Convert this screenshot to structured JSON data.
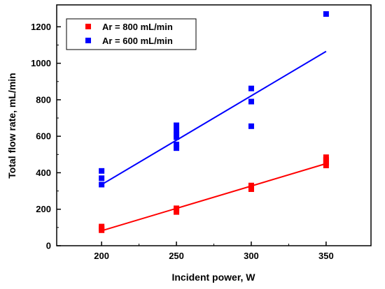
{
  "chart_data": {
    "type": "scatter",
    "xlabel": "Incident power, W",
    "ylabel": "Total flow rate, mL/min",
    "xlim": [
      170,
      380
    ],
    "ylim": [
      0,
      1320
    ],
    "xticks": [
      200,
      250,
      300,
      350
    ],
    "yticks": [
      0,
      200,
      400,
      600,
      800,
      1000,
      1200
    ],
    "grid": false,
    "legend_position": "top-left",
    "series": [
      {
        "name": "Ar = 800 mL/min",
        "color": "#ff0000",
        "marker": "square",
        "points": [
          [
            200,
            85
          ],
          [
            200,
            95
          ],
          [
            200,
            105
          ],
          [
            250,
            185
          ],
          [
            250,
            195
          ],
          [
            250,
            205
          ],
          [
            300,
            310
          ],
          [
            300,
            320
          ],
          [
            300,
            330
          ],
          [
            350,
            440
          ],
          [
            350,
            455
          ],
          [
            350,
            470
          ],
          [
            350,
            485
          ]
        ],
        "fit": [
          [
            200,
            82
          ],
          [
            350,
            450
          ]
        ]
      },
      {
        "name": "Ar = 600 mL/min",
        "color": "#0000ff",
        "marker": "square",
        "points": [
          [
            200,
            335
          ],
          [
            200,
            370
          ],
          [
            200,
            410
          ],
          [
            250,
            535
          ],
          [
            250,
            555
          ],
          [
            250,
            595
          ],
          [
            250,
            610
          ],
          [
            250,
            630
          ],
          [
            250,
            660
          ],
          [
            300,
            655
          ],
          [
            300,
            790
          ],
          [
            300,
            862
          ],
          [
            350,
            1270
          ]
        ],
        "fit": [
          [
            200,
            335
          ],
          [
            350,
            1065
          ]
        ]
      }
    ]
  }
}
